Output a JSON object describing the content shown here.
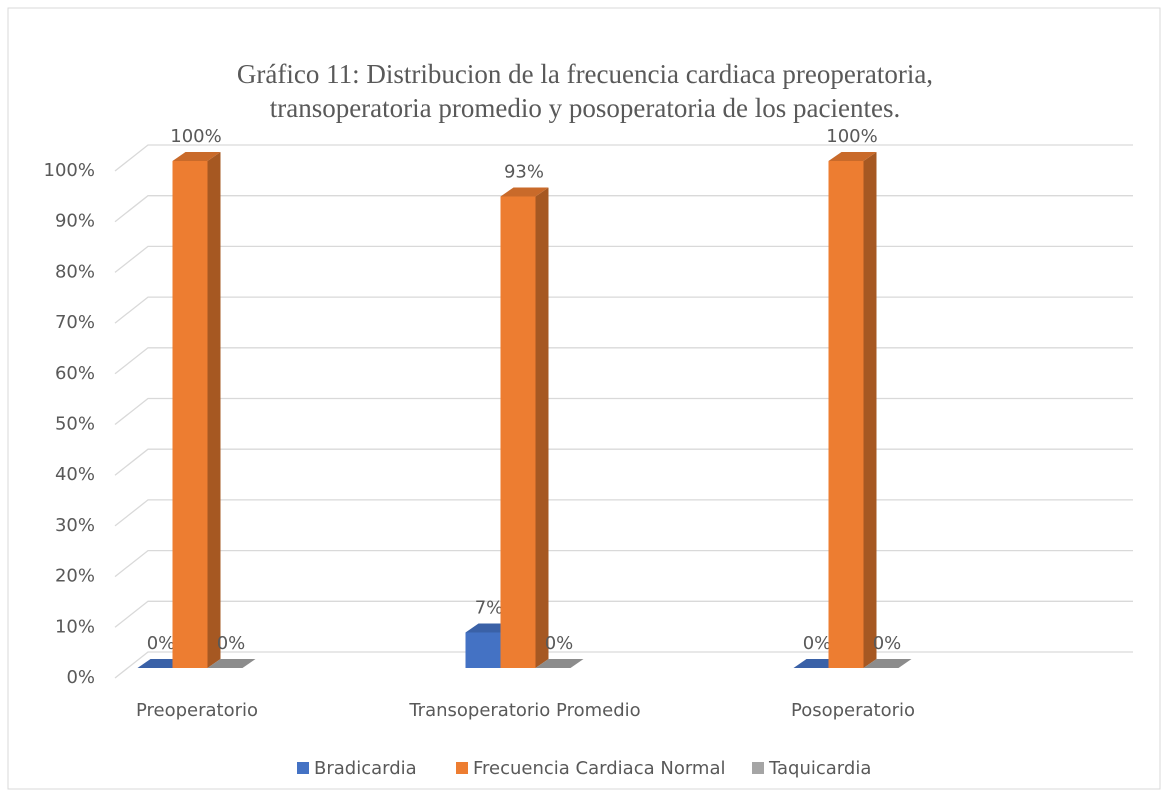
{
  "chart_data": {
    "type": "bar3d",
    "title": [
      "Gráfico 11: Distribucion de la frecuencia cardiaca preoperatoria,",
      "transoperatoria promedio y posoperatoria de los pacientes."
    ],
    "categories": [
      "Preoperatorio",
      "Transoperatorio Promedio",
      "Posoperatorio"
    ],
    "series": [
      {
        "name": "Bradicardia",
        "color": "#4472c4",
        "values": [
          0,
          7,
          0
        ],
        "value_labels": [
          "0%",
          "7%",
          "0%"
        ]
      },
      {
        "name": "Frecuencia Cardiaca Normal",
        "color": "#ed7d31",
        "values": [
          100,
          93,
          100
        ],
        "value_labels": [
          "100%",
          "93%",
          "100%"
        ]
      },
      {
        "name": "Taquicardia",
        "color": "#a5a5a5",
        "values": [
          0,
          0,
          0
        ],
        "value_labels": [
          "0%",
          "0%",
          "0%"
        ]
      }
    ],
    "ylim": [
      0,
      100
    ],
    "yticks": [
      {
        "value": 0,
        "label": "0%"
      },
      {
        "value": 10,
        "label": "10%"
      },
      {
        "value": 20,
        "label": "20%"
      },
      {
        "value": 30,
        "label": "30%"
      },
      {
        "value": 40,
        "label": "40%"
      },
      {
        "value": 50,
        "label": "50%"
      },
      {
        "value": 60,
        "label": "60%"
      },
      {
        "value": 70,
        "label": "70%"
      },
      {
        "value": 80,
        "label": "80%"
      },
      {
        "value": 90,
        "label": "90%"
      },
      {
        "value": 100,
        "label": "100%"
      }
    ],
    "grid": true,
    "legend": "bottom"
  }
}
